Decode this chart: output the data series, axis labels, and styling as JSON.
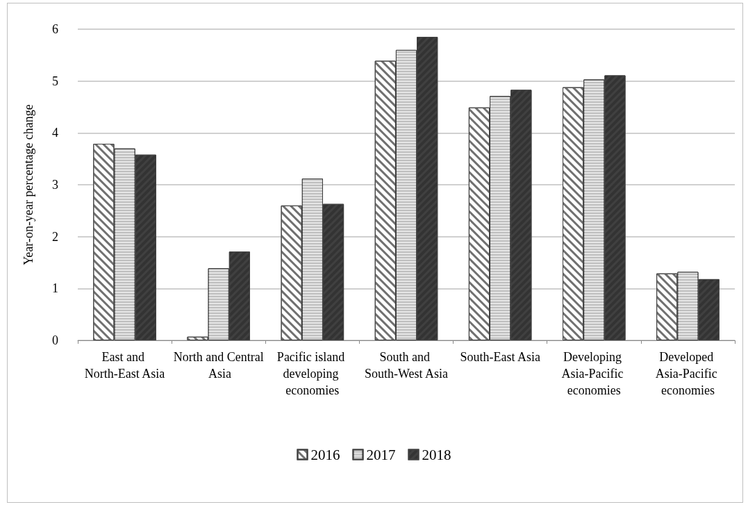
{
  "chart_data": {
    "type": "bar",
    "ylabel": "Year-on-year percentage change",
    "categories": [
      "East and North-East Asia",
      "North and Central Asia",
      "Pacific island developing economies",
      "South and South-West Asia",
      "South-East Asia",
      "Developing Asia-Pacific economies",
      "Developed Asia-Pacific economies"
    ],
    "series": [
      {
        "name": "2016",
        "color": "#ffffff",
        "values": [
          3.79,
          0.07,
          2.6,
          5.39,
          4.49,
          4.88,
          1.29
        ]
      },
      {
        "name": "2017",
        "color": "#bfbfbf",
        "values": [
          3.7,
          1.39,
          3.12,
          5.6,
          4.71,
          5.03,
          1.32
        ]
      },
      {
        "name": "2018",
        "color": "#404040",
        "values": [
          3.58,
          1.71,
          2.63,
          5.85,
          4.83,
          5.11,
          1.18
        ]
      }
    ],
    "ylim": [
      0,
      6
    ],
    "yticks": [
      0,
      1,
      2,
      3,
      4,
      5,
      6
    ],
    "grid": "y",
    "legend": "bottom"
  }
}
